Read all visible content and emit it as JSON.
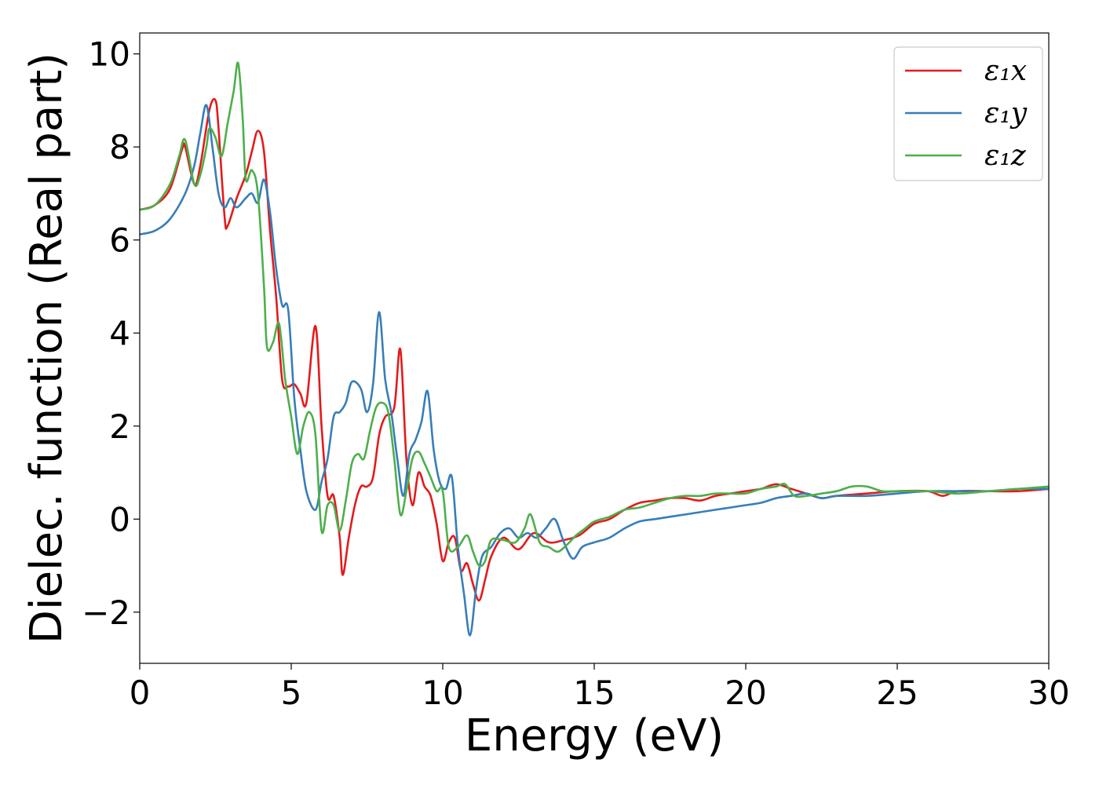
{
  "chart_data": {
    "type": "line",
    "title": "",
    "xlabel": "Energy (eV)",
    "ylabel": "Dielec. function (Real part)",
    "xlim": [
      0,
      30
    ],
    "ylim": [
      -3.1,
      10.45
    ],
    "xticks": [
      0,
      5,
      10,
      15,
      20,
      25,
      30
    ],
    "xtick_labels": [
      "0",
      "5",
      "10",
      "15",
      "20",
      "25",
      "30"
    ],
    "yticks": [
      -2,
      0,
      2,
      4,
      6,
      8,
      10
    ],
    "ytick_labels": [
      "−2",
      "0",
      "2",
      "4",
      "6",
      "8",
      "10"
    ],
    "grid": false,
    "legend": {
      "position": "top-right"
    },
    "series": [
      {
        "name": "ε₁x",
        "color": "#e41a1c",
        "points": [
          [
            0,
            6.65
          ],
          [
            0.5,
            6.75
          ],
          [
            1.0,
            7.1
          ],
          [
            1.4,
            7.95
          ],
          [
            1.5,
            8.0
          ],
          [
            1.8,
            7.2
          ],
          [
            2.0,
            7.6
          ],
          [
            2.3,
            8.8
          ],
          [
            2.5,
            9.0
          ],
          [
            2.6,
            8.4
          ],
          [
            2.8,
            6.5
          ],
          [
            2.9,
            6.3
          ],
          [
            3.2,
            6.9
          ],
          [
            3.5,
            7.4
          ],
          [
            3.7,
            7.9
          ],
          [
            3.9,
            8.35
          ],
          [
            4.1,
            7.9
          ],
          [
            4.3,
            6.2
          ],
          [
            4.5,
            4.8
          ],
          [
            4.7,
            3.0
          ],
          [
            4.9,
            2.85
          ],
          [
            5.1,
            2.9
          ],
          [
            5.3,
            2.7
          ],
          [
            5.5,
            2.5
          ],
          [
            5.8,
            4.15
          ],
          [
            6.0,
            2.0
          ],
          [
            6.2,
            0.5
          ],
          [
            6.4,
            0.5
          ],
          [
            6.6,
            -0.4
          ],
          [
            6.7,
            -1.2
          ],
          [
            6.9,
            -0.4
          ],
          [
            7.1,
            0.3
          ],
          [
            7.3,
            0.7
          ],
          [
            7.5,
            0.7
          ],
          [
            7.7,
            0.9
          ],
          [
            7.9,
            1.8
          ],
          [
            8.1,
            2.2
          ],
          [
            8.4,
            2.4
          ],
          [
            8.6,
            3.65
          ],
          [
            8.8,
            1.3
          ],
          [
            9.0,
            0.3
          ],
          [
            9.2,
            1.0
          ],
          [
            9.4,
            0.7
          ],
          [
            9.6,
            0.5
          ],
          [
            9.8,
            -0.1
          ],
          [
            10.0,
            -0.9
          ],
          [
            10.2,
            -0.5
          ],
          [
            10.4,
            -0.4
          ],
          [
            10.6,
            -1.1
          ],
          [
            10.8,
            -0.95
          ],
          [
            11.0,
            -1.4
          ],
          [
            11.2,
            -1.75
          ],
          [
            11.4,
            -1.3
          ],
          [
            11.6,
            -0.8
          ],
          [
            12.0,
            -0.4
          ],
          [
            12.5,
            -0.65
          ],
          [
            13.0,
            -0.3
          ],
          [
            13.5,
            -0.5
          ],
          [
            14.0,
            -0.45
          ],
          [
            14.5,
            -0.35
          ],
          [
            15.0,
            -0.1
          ],
          [
            15.5,
            0.0
          ],
          [
            16.0,
            0.2
          ],
          [
            16.5,
            0.35
          ],
          [
            17.0,
            0.4
          ],
          [
            17.5,
            0.45
          ],
          [
            18.0,
            0.45
          ],
          [
            18.5,
            0.4
          ],
          [
            19.0,
            0.5
          ],
          [
            19.5,
            0.55
          ],
          [
            20.0,
            0.6
          ],
          [
            20.5,
            0.65
          ],
          [
            21.0,
            0.75
          ],
          [
            21.5,
            0.65
          ],
          [
            22.0,
            0.55
          ],
          [
            22.5,
            0.45
          ],
          [
            23.0,
            0.5
          ],
          [
            24.0,
            0.55
          ],
          [
            25.0,
            0.6
          ],
          [
            26.0,
            0.6
          ],
          [
            26.5,
            0.5
          ],
          [
            27.0,
            0.6
          ],
          [
            28.0,
            0.6
          ],
          [
            29.0,
            0.6
          ],
          [
            30.0,
            0.65
          ]
        ]
      },
      {
        "name": "ε₁y",
        "color": "#377eb8",
        "points": [
          [
            0,
            6.12
          ],
          [
            0.5,
            6.2
          ],
          [
            1.0,
            6.45
          ],
          [
            1.5,
            7.0
          ],
          [
            1.8,
            7.6
          ],
          [
            2.0,
            8.3
          ],
          [
            2.2,
            8.9
          ],
          [
            2.4,
            8.0
          ],
          [
            2.6,
            7.0
          ],
          [
            2.8,
            6.7
          ],
          [
            3.0,
            6.9
          ],
          [
            3.2,
            6.7
          ],
          [
            3.5,
            6.9
          ],
          [
            3.7,
            7.0
          ],
          [
            3.9,
            6.8
          ],
          [
            4.1,
            7.3
          ],
          [
            4.3,
            6.6
          ],
          [
            4.5,
            5.4
          ],
          [
            4.7,
            4.6
          ],
          [
            4.9,
            4.5
          ],
          [
            5.1,
            2.6
          ],
          [
            5.3,
            1.5
          ],
          [
            5.5,
            0.6
          ],
          [
            5.8,
            0.2
          ],
          [
            6.0,
            0.8
          ],
          [
            6.2,
            1.3
          ],
          [
            6.4,
            2.2
          ],
          [
            6.6,
            2.3
          ],
          [
            6.8,
            2.5
          ],
          [
            7.0,
            2.95
          ],
          [
            7.3,
            2.8
          ],
          [
            7.5,
            2.3
          ],
          [
            7.7,
            2.9
          ],
          [
            7.9,
            4.45
          ],
          [
            8.1,
            3.0
          ],
          [
            8.3,
            2.3
          ],
          [
            8.5,
            1.3
          ],
          [
            8.7,
            0.5
          ],
          [
            8.9,
            1.4
          ],
          [
            9.1,
            1.7
          ],
          [
            9.3,
            2.1
          ],
          [
            9.5,
            2.75
          ],
          [
            9.7,
            1.5
          ],
          [
            9.9,
            0.8
          ],
          [
            10.1,
            0.65
          ],
          [
            10.3,
            0.9
          ],
          [
            10.5,
            -0.6
          ],
          [
            10.7,
            -1.6
          ],
          [
            10.9,
            -2.5
          ],
          [
            11.1,
            -1.5
          ],
          [
            11.3,
            -0.8
          ],
          [
            11.6,
            -0.6
          ],
          [
            11.9,
            -0.3
          ],
          [
            12.2,
            -0.2
          ],
          [
            12.5,
            -0.4
          ],
          [
            12.8,
            -0.3
          ],
          [
            13.1,
            -0.4
          ],
          [
            13.4,
            -0.2
          ],
          [
            13.7,
            0.0
          ],
          [
            14.0,
            -0.5
          ],
          [
            14.3,
            -0.85
          ],
          [
            14.6,
            -0.6
          ],
          [
            15.0,
            -0.5
          ],
          [
            15.5,
            -0.4
          ],
          [
            16.0,
            -0.2
          ],
          [
            16.5,
            -0.05
          ],
          [
            17.0,
            0.0
          ],
          [
            17.5,
            0.05
          ],
          [
            18.0,
            0.1
          ],
          [
            18.5,
            0.15
          ],
          [
            19.0,
            0.2
          ],
          [
            19.5,
            0.25
          ],
          [
            20.0,
            0.3
          ],
          [
            20.5,
            0.35
          ],
          [
            21.0,
            0.45
          ],
          [
            21.5,
            0.5
          ],
          [
            22.0,
            0.55
          ],
          [
            22.5,
            0.45
          ],
          [
            23.0,
            0.5
          ],
          [
            24.0,
            0.5
          ],
          [
            25.0,
            0.55
          ],
          [
            26.0,
            0.6
          ],
          [
            27.0,
            0.6
          ],
          [
            28.0,
            0.6
          ],
          [
            29.0,
            0.65
          ],
          [
            30.0,
            0.65
          ]
        ]
      },
      {
        "name": "ε₁z",
        "color": "#4daf4a",
        "points": [
          [
            0,
            6.65
          ],
          [
            0.5,
            6.75
          ],
          [
            1.0,
            7.2
          ],
          [
            1.3,
            7.8
          ],
          [
            1.5,
            8.15
          ],
          [
            1.8,
            7.2
          ],
          [
            2.0,
            7.4
          ],
          [
            2.2,
            8.0
          ],
          [
            2.3,
            8.4
          ],
          [
            2.5,
            8.2
          ],
          [
            2.7,
            7.8
          ],
          [
            2.9,
            8.5
          ],
          [
            3.1,
            9.2
          ],
          [
            3.25,
            9.8
          ],
          [
            3.4,
            8.6
          ],
          [
            3.5,
            7.3
          ],
          [
            3.7,
            7.5
          ],
          [
            3.9,
            7.0
          ],
          [
            4.1,
            5.0
          ],
          [
            4.2,
            3.7
          ],
          [
            4.4,
            3.8
          ],
          [
            4.6,
            4.2
          ],
          [
            4.8,
            3.0
          ],
          [
            5.0,
            2.2
          ],
          [
            5.2,
            1.4
          ],
          [
            5.4,
            2.0
          ],
          [
            5.6,
            2.3
          ],
          [
            5.8,
            1.8
          ],
          [
            6.0,
            -0.25
          ],
          [
            6.2,
            0.3
          ],
          [
            6.4,
            0.3
          ],
          [
            6.6,
            -0.25
          ],
          [
            6.8,
            0.4
          ],
          [
            7.0,
            1.2
          ],
          [
            7.2,
            1.4
          ],
          [
            7.4,
            1.3
          ],
          [
            7.6,
            1.9
          ],
          [
            7.8,
            2.4
          ],
          [
            8.0,
            2.5
          ],
          [
            8.2,
            2.3
          ],
          [
            8.4,
            1.3
          ],
          [
            8.6,
            0.1
          ],
          [
            8.8,
            0.6
          ],
          [
            9.0,
            1.3
          ],
          [
            9.2,
            1.45
          ],
          [
            9.4,
            1.2
          ],
          [
            9.6,
            0.9
          ],
          [
            9.8,
            0.6
          ],
          [
            10.0,
            0.6
          ],
          [
            10.2,
            -0.6
          ],
          [
            10.5,
            -0.6
          ],
          [
            10.8,
            -0.35
          ],
          [
            11.0,
            -0.7
          ],
          [
            11.2,
            -1.0
          ],
          [
            11.4,
            -0.9
          ],
          [
            11.6,
            -0.45
          ],
          [
            12.0,
            -0.45
          ],
          [
            12.4,
            -0.5
          ],
          [
            12.7,
            -0.2
          ],
          [
            12.9,
            0.1
          ],
          [
            13.2,
            -0.5
          ],
          [
            13.5,
            -0.6
          ],
          [
            13.8,
            -0.7
          ],
          [
            14.1,
            -0.55
          ],
          [
            14.4,
            -0.35
          ],
          [
            14.7,
            -0.2
          ],
          [
            15.0,
            -0.05
          ],
          [
            15.5,
            0.05
          ],
          [
            16.0,
            0.2
          ],
          [
            16.5,
            0.25
          ],
          [
            17.0,
            0.35
          ],
          [
            17.5,
            0.45
          ],
          [
            18.0,
            0.5
          ],
          [
            18.5,
            0.5
          ],
          [
            19.0,
            0.55
          ],
          [
            19.5,
            0.55
          ],
          [
            20.0,
            0.55
          ],
          [
            20.5,
            0.65
          ],
          [
            21.0,
            0.7
          ],
          [
            21.3,
            0.75
          ],
          [
            21.6,
            0.5
          ],
          [
            22.0,
            0.5
          ],
          [
            22.5,
            0.55
          ],
          [
            23.0,
            0.6
          ],
          [
            23.5,
            0.7
          ],
          [
            24.0,
            0.7
          ],
          [
            24.5,
            0.6
          ],
          [
            25.0,
            0.6
          ],
          [
            26.0,
            0.6
          ],
          [
            27.0,
            0.55
          ],
          [
            28.0,
            0.6
          ],
          [
            29.0,
            0.65
          ],
          [
            30.0,
            0.7
          ]
        ]
      }
    ]
  }
}
